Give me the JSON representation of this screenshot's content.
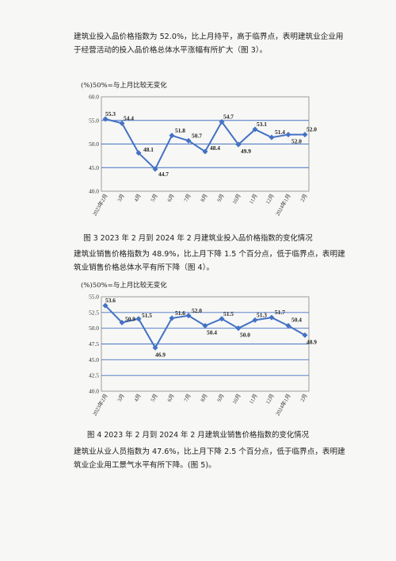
{
  "paragraphs": [
    "建筑业投入品价格指数为 52.0%，比上月持平，高于临界点，表明建筑业企业用于经营活动的投入品价格总体水平涨幅有所扩大（图 3）。",
    "建筑业销售价格指数为 48.9%，比上月下降 1.5 个百分点，低于临界点，表明建筑业销售价格总体水平有所下降（图 4）。",
    "建筑业从业人员指数为 47.6%，比上月下降 2.5 个百分点，低于临界点，表明建筑业企业用工景气水平有所下降。(图 5)。"
  ],
  "captions": [
    "图 3   2023 年 2 月到 2024 年 2 月建筑业投入品价格指数的变化情况",
    "图 4   2023 年 2 月到 2024 年 2 月建筑业销售价格指数的变化情况"
  ],
  "colors": {
    "line": "#4472c4",
    "grid": "#4472c4",
    "axis": "#888888"
  },
  "chart_data": [
    {
      "type": "line",
      "unit_label": "(%)50%=与上月比较无变化",
      "categories": [
        "2023年2月",
        "3月",
        "4月",
        "5月",
        "6月",
        "7月",
        "8月",
        "9月",
        "10月",
        "11月",
        "12月",
        "2024年1月",
        "2月"
      ],
      "values": [
        55.3,
        54.4,
        48.1,
        44.7,
        51.8,
        50.7,
        48.4,
        54.7,
        49.9,
        53.1,
        51.4,
        52.0,
        52.0
      ],
      "value_labels": [
        "55.3",
        "54.4",
        "48.1",
        "44.7",
        "51.8",
        "50.7",
        "48.4",
        "54.7",
        "49.9",
        "53.1",
        "51.4",
        "52.0",
        "52.0"
      ],
      "ylim": [
        40.0,
        60.0
      ],
      "yticks": [
        "40.0",
        "45.0",
        "50.0",
        "55.0",
        "60.0"
      ],
      "grid": true
    },
    {
      "type": "line",
      "unit_label": "(%)50%=与上月比较无变化",
      "categories": [
        "2023年2月",
        "3月",
        "4月",
        "5月",
        "6月",
        "7月",
        "8月",
        "9月",
        "10月",
        "11月",
        "12月",
        "2024年1月",
        "2月"
      ],
      "values": [
        53.6,
        50.9,
        51.5,
        46.9,
        51.6,
        52.0,
        50.4,
        51.5,
        50.0,
        51.3,
        51.7,
        50.4,
        48.9
      ],
      "value_labels": [
        "53.6",
        "50.9",
        "51.5",
        "46.9",
        "51.6",
        "52.0",
        "50.4",
        "51.5",
        "50.0",
        "51.3",
        "51.7",
        "50.4",
        "48.9"
      ],
      "ylim": [
        40.0,
        55.0
      ],
      "yticks": [
        "40.0",
        "42.5",
        "45.0",
        "47.5",
        "50.0",
        "52.5",
        "55.0"
      ],
      "grid": true
    }
  ]
}
